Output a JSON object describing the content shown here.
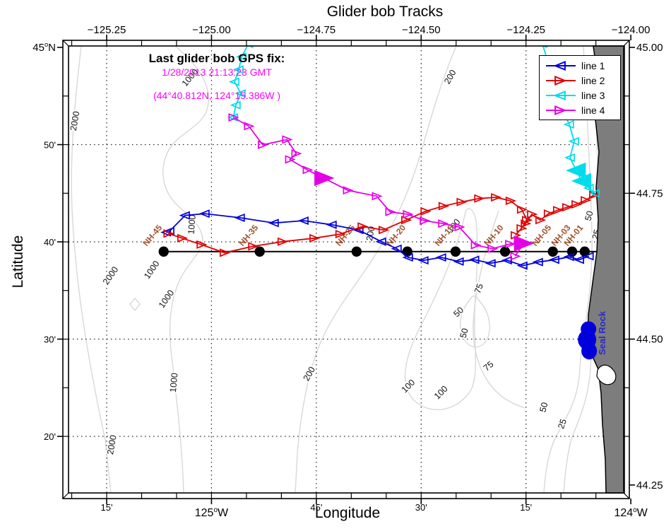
{
  "title": "Glider bob Tracks",
  "axes": {
    "xlabel": "Longitude",
    "ylabel": "Latitude",
    "top_ticks": [
      {
        "lon": -125.25,
        "label": "−125.25"
      },
      {
        "lon": -125.0,
        "label": "−125.00"
      },
      {
        "lon": -124.75,
        "label": "−124.75"
      },
      {
        "lon": -124.5,
        "label": "−124.50"
      },
      {
        "lon": -124.25,
        "label": "−124.25"
      },
      {
        "lon": -124.0,
        "label": "−124.00"
      }
    ],
    "bottom_ticks": [
      {
        "lon": -125.25,
        "label": "15'",
        "deg": false
      },
      {
        "lon": -125.0,
        "label": "125°W",
        "deg": true
      },
      {
        "lon": -124.75,
        "label": "45'",
        "deg": false
      },
      {
        "lon": -124.5,
        "label": "30'",
        "deg": false
      },
      {
        "lon": -124.25,
        "label": "15'",
        "deg": false
      },
      {
        "lon": -124.0,
        "label": "124°W",
        "deg": true
      }
    ],
    "left_ticks": [
      {
        "lat": 45.0,
        "label": "45°N",
        "deg": true
      },
      {
        "lat": 44.8333,
        "label": "50'",
        "deg": false
      },
      {
        "lat": 44.6667,
        "label": "40'",
        "deg": false
      },
      {
        "lat": 44.5,
        "label": "30'",
        "deg": false
      },
      {
        "lat": 44.3333,
        "label": "20'",
        "deg": false
      }
    ],
    "right_ticks": [
      {
        "lat": 45.0,
        "label": "45.00"
      },
      {
        "lat": 44.75,
        "label": "44.75"
      },
      {
        "lat": 44.5,
        "label": "44.50"
      },
      {
        "lat": 44.25,
        "label": "44.25"
      }
    ]
  },
  "annotation": {
    "heading": "Last glider bob GPS fix:",
    "timestamp": "1/28/2013 21:13:23 GMT",
    "position": "(44°40.812N, 124°15.386W )"
  },
  "legend": {
    "items": [
      {
        "label": "line 1",
        "color": "#0000dd",
        "marker": "left"
      },
      {
        "label": "line 2",
        "color": "#e00000",
        "marker": "right"
      },
      {
        "label": "line 3",
        "color": "#00dcec",
        "marker": "left"
      },
      {
        "label": "line 4",
        "color": "#e600e6",
        "marker": "right"
      }
    ]
  },
  "map": {
    "seal_rock_label": "Seal Rock",
    "seal_rock_color": "#2929cc",
    "land_color": "#7d7d7d",
    "contour_color": "#d8d8d8",
    "station_color": "#a0522d",
    "grid_color": "#222222",
    "annotation_color": "#ff00ff"
  },
  "chart_data": {
    "type": "line",
    "title": "Glider bob Tracks",
    "xlabel": "Longitude",
    "ylabel": "Latitude",
    "lon_range": [
      -125.34,
      -124.02
    ],
    "lat_range": [
      44.24,
      45.0
    ],
    "grid": {
      "style": "dotted",
      "lons": [
        -125.25,
        -125.0,
        -124.75,
        -124.5,
        -124.25
      ],
      "lats": [
        44.8333,
        44.6667,
        44.5,
        44.3333
      ]
    },
    "series": [
      {
        "name": "line 1",
        "color": "#0000dd",
        "marker": "left",
        "segments": [
          [
            [
              -125.108,
              44.683
            ],
            [
              -125.1,
              44.685
            ],
            [
              -125.063,
              44.712
            ],
            [
              -125.016,
              44.715
            ],
            [
              -124.932,
              44.708
            ],
            [
              -124.851,
              44.699
            ],
            [
              -124.78,
              44.703
            ],
            [
              -124.713,
              44.696
            ],
            [
              -124.649,
              44.687
            ],
            [
              -124.595,
              44.667
            ],
            [
              -124.558,
              44.655
            ],
            [
              -124.531,
              44.64
            ],
            [
              -124.494,
              44.635
            ],
            [
              -124.452,
              44.64
            ],
            [
              -124.41,
              44.633
            ],
            [
              -124.373,
              44.636
            ],
            [
              -124.334,
              44.63
            ],
            [
              -124.295,
              44.635
            ],
            [
              -124.258,
              44.626
            ],
            [
              -124.221,
              44.632
            ],
            [
              -124.182,
              44.636
            ],
            [
              -124.147,
              44.641
            ],
            [
              -124.123,
              44.636
            ],
            [
              -124.1,
              44.642
            ]
          ]
        ]
      },
      {
        "name": "line 2",
        "color": "#e00000",
        "marker": "right",
        "segments": [
          [
            [
              -125.103,
              44.681
            ],
            [
              -125.07,
              44.673
            ],
            [
              -125.024,
              44.662
            ],
            [
              -124.969,
              44.648
            ],
            [
              -124.901,
              44.659
            ],
            [
              -124.831,
              44.667
            ],
            [
              -124.755,
              44.673
            ],
            [
              -124.693,
              44.68
            ],
            [
              -124.64,
              44.693
            ],
            [
              -124.59,
              44.687
            ],
            [
              -124.536,
              44.704
            ],
            [
              -124.49,
              44.719
            ],
            [
              -124.447,
              44.728
            ],
            [
              -124.404,
              44.735
            ],
            [
              -124.362,
              44.741
            ],
            [
              -124.322,
              44.743
            ],
            [
              -124.287,
              44.737
            ],
            [
              -124.26,
              44.722
            ],
            [
              -124.248,
              44.704
            ],
            [
              -124.261,
              44.69
            ],
            [
              -124.275,
              44.678
            ],
            [
              -124.251,
              44.698
            ],
            [
              -124.236,
              44.714
            ],
            [
              -124.216,
              44.704
            ],
            [
              -124.196,
              44.715
            ],
            [
              -124.174,
              44.721
            ],
            [
              -124.152,
              44.726
            ],
            [
              -124.13,
              44.731
            ],
            [
              -124.108,
              44.738
            ],
            [
              -124.088,
              44.747
            ]
          ]
        ]
      },
      {
        "name": "line 3",
        "color": "#00dcec",
        "marker": "left",
        "segments": [
          [
            [
              -124.912,
              45.006
            ],
            [
              -124.928,
              44.984
            ],
            [
              -124.935,
              44.962
            ],
            [
              -124.945,
              44.941
            ],
            [
              -124.93,
              44.921
            ],
            [
              -124.942,
              44.901
            ],
            [
              -124.948,
              44.88
            ]
          ],
          [
            [
              -124.211,
              45.006
            ],
            [
              -124.199,
              44.978
            ],
            [
              -124.17,
              44.954
            ],
            [
              -124.157,
              44.926
            ],
            [
              -124.165,
              44.897
            ],
            [
              -124.147,
              44.868
            ],
            [
              -124.135,
              44.839
            ],
            [
              -124.145,
              44.811
            ],
            [
              -124.13,
              44.789,
              1
            ],
            [
              -124.117,
              44.771,
              1
            ],
            [
              -124.1,
              44.759
            ],
            [
              -124.086,
              44.75
            ]
          ]
        ]
      },
      {
        "name": "line 4",
        "color": "#e600e6",
        "marker": "right",
        "segments": [
          [
            [
              -124.948,
              44.88
            ],
            [
              -124.911,
              44.865
            ],
            [
              -124.878,
              44.833
            ],
            [
              -124.82,
              44.842
            ],
            [
              -124.798,
              44.818
            ],
            [
              -124.813,
              44.808
            ],
            [
              -124.771,
              44.79
            ],
            [
              -124.732,
              44.776,
              1
            ],
            [
              -124.675,
              44.755
            ],
            [
              -124.606,
              44.745
            ],
            [
              -124.574,
              44.718
            ],
            [
              -124.532,
              44.714
            ],
            [
              -124.492,
              44.703
            ],
            [
              -124.448,
              44.698
            ],
            [
              -124.409,
              44.692
            ],
            [
              -124.37,
              44.661
            ],
            [
              -124.33,
              44.655
            ],
            [
              -124.288,
              44.663
            ],
            [
              -124.256,
              44.664,
              1
            ],
            [
              -124.276,
              44.642
            ]
          ]
        ]
      }
    ],
    "transect": {
      "lat": 44.65,
      "lon_start": -125.114,
      "lon_end": -124.081
    },
    "station_lat": 44.65,
    "stations": [
      {
        "id": "NH-45",
        "lon": -125.114
      },
      {
        "id": "NH-35",
        "lon": -124.885
      },
      {
        "id": "NH-25",
        "lon": -124.654
      },
      {
        "id": "NH-20",
        "lon": -124.533
      },
      {
        "id": "NH-15",
        "lon": -124.418
      },
      {
        "id": "NH-10",
        "lon": -124.3
      },
      {
        "id": "NH-05",
        "lon": -124.186
      },
      {
        "id": "NH-03",
        "lon": -124.14
      },
      {
        "id": "NH-01",
        "lon": -124.11
      }
    ],
    "clusters": [
      {
        "lon": -124.101,
        "lat": 44.499,
        "color": "#0000dd"
      }
    ],
    "contour_labels": [
      {
        "v": "2000",
        "lon": -125.319,
        "lat": 44.873,
        "rot": -80
      },
      {
        "v": "1000",
        "lon": -125.046,
        "lat": 44.945,
        "rot": -50
      },
      {
        "v": "200",
        "lon": -124.425,
        "lat": 44.947,
        "rot": -60
      },
      {
        "v": "1000",
        "lon": -125.04,
        "lat": 44.696,
        "rot": -85
      },
      {
        "v": "200",
        "lon": -124.614,
        "lat": 44.68,
        "rot": -80
      },
      {
        "v": "100",
        "lon": -124.417,
        "lat": 44.691,
        "rot": -50
      },
      {
        "v": "2000",
        "lon": -125.235,
        "lat": 44.606,
        "rot": -55
      },
      {
        "v": "1000",
        "lon": -125.137,
        "lat": 44.616,
        "rot": -55
      },
      {
        "v": "1000",
        "lon": -125.102,
        "lat": 44.566,
        "rot": -55
      },
      {
        "v": "2000",
        "lon": -125.231,
        "lat": 44.318,
        "rot": -80
      },
      {
        "v": "1000",
        "lon": -125.083,
        "lat": 44.425,
        "rot": -85
      },
      {
        "v": "200",
        "lon": -124.761,
        "lat": 44.438,
        "rot": -60
      },
      {
        "v": "100",
        "lon": -124.526,
        "lat": 44.416,
        "rot": -45
      },
      {
        "v": "100",
        "lon": -124.448,
        "lat": 44.405,
        "rot": -45
      },
      {
        "v": "75",
        "lon": -124.356,
        "lat": 44.585,
        "rot": -70
      },
      {
        "v": "50",
        "lon": -124.406,
        "lat": 44.543,
        "rot": -45
      },
      {
        "v": "50",
        "lon": -124.391,
        "lat": 44.509,
        "rot": -75
      },
      {
        "v": "75",
        "lon": -124.335,
        "lat": 44.45,
        "rot": -40
      },
      {
        "v": "50",
        "lon": -124.201,
        "lat": 44.382,
        "rot": -75
      },
      {
        "v": "25",
        "lon": -124.157,
        "lat": 44.353,
        "rot": -70
      },
      {
        "v": "50",
        "lon": -124.093,
        "lat": 44.71,
        "rot": -75
      },
      {
        "v": "25",
        "lon": -124.076,
        "lat": 44.678,
        "rot": -75
      }
    ]
  }
}
